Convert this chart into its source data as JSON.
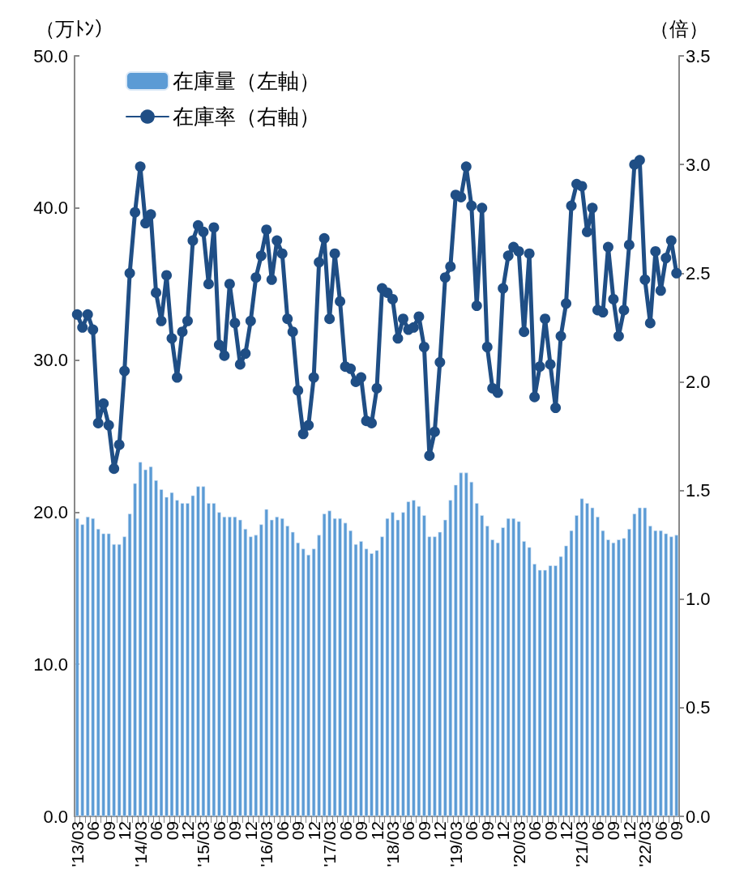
{
  "chart_data": {
    "type": "bar",
    "ylabel": "（万ﾄﾝ）",
    "y2label": "（倍）",
    "categories": [
      "'13/03",
      null,
      null,
      "06",
      null,
      null,
      "09",
      null,
      null,
      "12",
      null,
      null,
      "'14/03",
      null,
      null,
      "06",
      null,
      null,
      "09",
      null,
      null,
      "12",
      null,
      null,
      "'15/03",
      null,
      null,
      "06",
      null,
      null,
      "09",
      null,
      null,
      "12",
      null,
      null,
      "'16/03",
      null,
      null,
      "06",
      null,
      null,
      "09",
      null,
      null,
      "12",
      null,
      null,
      "'17/03",
      null,
      null,
      "06",
      null,
      null,
      "09",
      null,
      null,
      "12",
      null,
      null,
      "'18/03",
      null,
      null,
      "06",
      null,
      null,
      "09",
      null,
      null,
      "12",
      null,
      null,
      "'19/03",
      null,
      null,
      "06",
      null,
      null,
      "09",
      null,
      null,
      "12",
      null,
      null,
      "'20/03",
      null,
      null,
      "06",
      null,
      null,
      "09",
      null,
      null,
      "12",
      null,
      null,
      "'21/03",
      null,
      null,
      "06",
      null,
      null,
      "09",
      null,
      null,
      "12",
      null,
      null,
      "'22/03",
      null,
      null,
      "06",
      null,
      null,
      "09"
    ],
    "series": [
      {
        "name": "在庫量（左軸）",
        "color": "#5b9bd5",
        "values": [
          19.6,
          19.2,
          19.7,
          19.6,
          18.9,
          18.6,
          18.6,
          17.9,
          17.9,
          18.4,
          19.9,
          21.9,
          23.3,
          22.8,
          23.0,
          22.1,
          21.5,
          21.0,
          21.3,
          20.8,
          20.6,
          20.6,
          21.1,
          21.7,
          21.7,
          20.6,
          20.6,
          20.0,
          19.7,
          19.7,
          19.7,
          19.5,
          18.9,
          18.4,
          18.5,
          19.2,
          20.2,
          19.5,
          19.7,
          19.6,
          19.1,
          18.7,
          18.0,
          17.6,
          17.2,
          17.6,
          18.5,
          19.9,
          20.1,
          19.6,
          19.6,
          19.3,
          18.8,
          17.9,
          18.1,
          17.6,
          17.3,
          17.5,
          18.4,
          19.6,
          20.0,
          19.5,
          20.0,
          20.7,
          20.8,
          20.4,
          19.8,
          18.4,
          18.4,
          18.7,
          19.5,
          20.8,
          21.8,
          22.6,
          22.6,
          22.0,
          20.6,
          19.8,
          19.1,
          18.2,
          18.0,
          19.0,
          19.6,
          19.6,
          19.4,
          18.1,
          17.7,
          16.6,
          16.2,
          16.2,
          16.5,
          16.5,
          17.1,
          17.8,
          18.8,
          19.8,
          20.9,
          20.6,
          20.3,
          19.7,
          18.8,
          18.2,
          18.0,
          18.2,
          18.3,
          18.9,
          19.9,
          20.3,
          20.3,
          19.1,
          18.8,
          18.8,
          18.6,
          18.4,
          18.5
        ]
      },
      {
        "name": "在庫率（右軸）",
        "type": "line",
        "axis": "y2",
        "color": "#1f4e85",
        "values": [
          2.31,
          2.25,
          2.31,
          2.24,
          1.81,
          1.9,
          1.8,
          1.6,
          1.71,
          2.05,
          2.5,
          2.78,
          2.99,
          2.73,
          2.77,
          2.41,
          2.28,
          2.49,
          2.2,
          2.02,
          2.23,
          2.28,
          2.65,
          2.72,
          2.69,
          2.45,
          2.71,
          2.17,
          2.12,
          2.45,
          2.27,
          2.08,
          2.13,
          2.28,
          2.48,
          2.58,
          2.7,
          2.47,
          2.65,
          2.59,
          2.29,
          2.23,
          1.96,
          1.76,
          1.8,
          2.02,
          2.55,
          2.66,
          2.29,
          2.59,
          2.37,
          2.07,
          2.06,
          2.0,
          2.02,
          1.82,
          1.81,
          1.97,
          2.43,
          2.41,
          2.38,
          2.2,
          2.29,
          2.24,
          2.25,
          2.3,
          2.16,
          1.66,
          1.77,
          2.09,
          2.48,
          2.53,
          2.86,
          2.85,
          2.99,
          2.81,
          2.35,
          2.8,
          2.16,
          1.97,
          1.95,
          2.43,
          2.58,
          2.62,
          2.6,
          2.23,
          2.59,
          1.93,
          2.07,
          2.29,
          2.08,
          1.88,
          2.21,
          2.36,
          2.81,
          2.91,
          2.9,
          2.69,
          2.8,
          2.33,
          2.32,
          2.62,
          2.38,
          2.21,
          2.33,
          2.63,
          3.0,
          3.02,
          2.47,
          2.27,
          2.6,
          2.42,
          2.57,
          2.65,
          2.5
        ]
      }
    ],
    "ylim": [
      0,
      50
    ],
    "yticks": [
      {
        "value": 0,
        "label": "0.0"
      },
      {
        "value": 10,
        "label": "10.0"
      },
      {
        "value": 20,
        "label": "20.0"
      },
      {
        "value": 30,
        "label": "30.0"
      },
      {
        "value": 40,
        "label": "40.0"
      },
      {
        "value": 50,
        "label": "50.0"
      }
    ],
    "y2lim": [
      0,
      3.5
    ],
    "y2ticks": [
      {
        "value": 0,
        "label": "0.0"
      },
      {
        "value": 0.5,
        "label": "0.5"
      },
      {
        "value": 1,
        "label": "1.0"
      },
      {
        "value": 1.5,
        "label": "1.5"
      },
      {
        "value": 2,
        "label": "2.0"
      },
      {
        "value": 2.5,
        "label": "2.5"
      },
      {
        "value": 3,
        "label": "3.0"
      },
      {
        "value": 3.5,
        "label": "3.5"
      }
    ],
    "grid": false,
    "legend": "top left",
    "marker": "circle",
    "line_style": "solid"
  }
}
